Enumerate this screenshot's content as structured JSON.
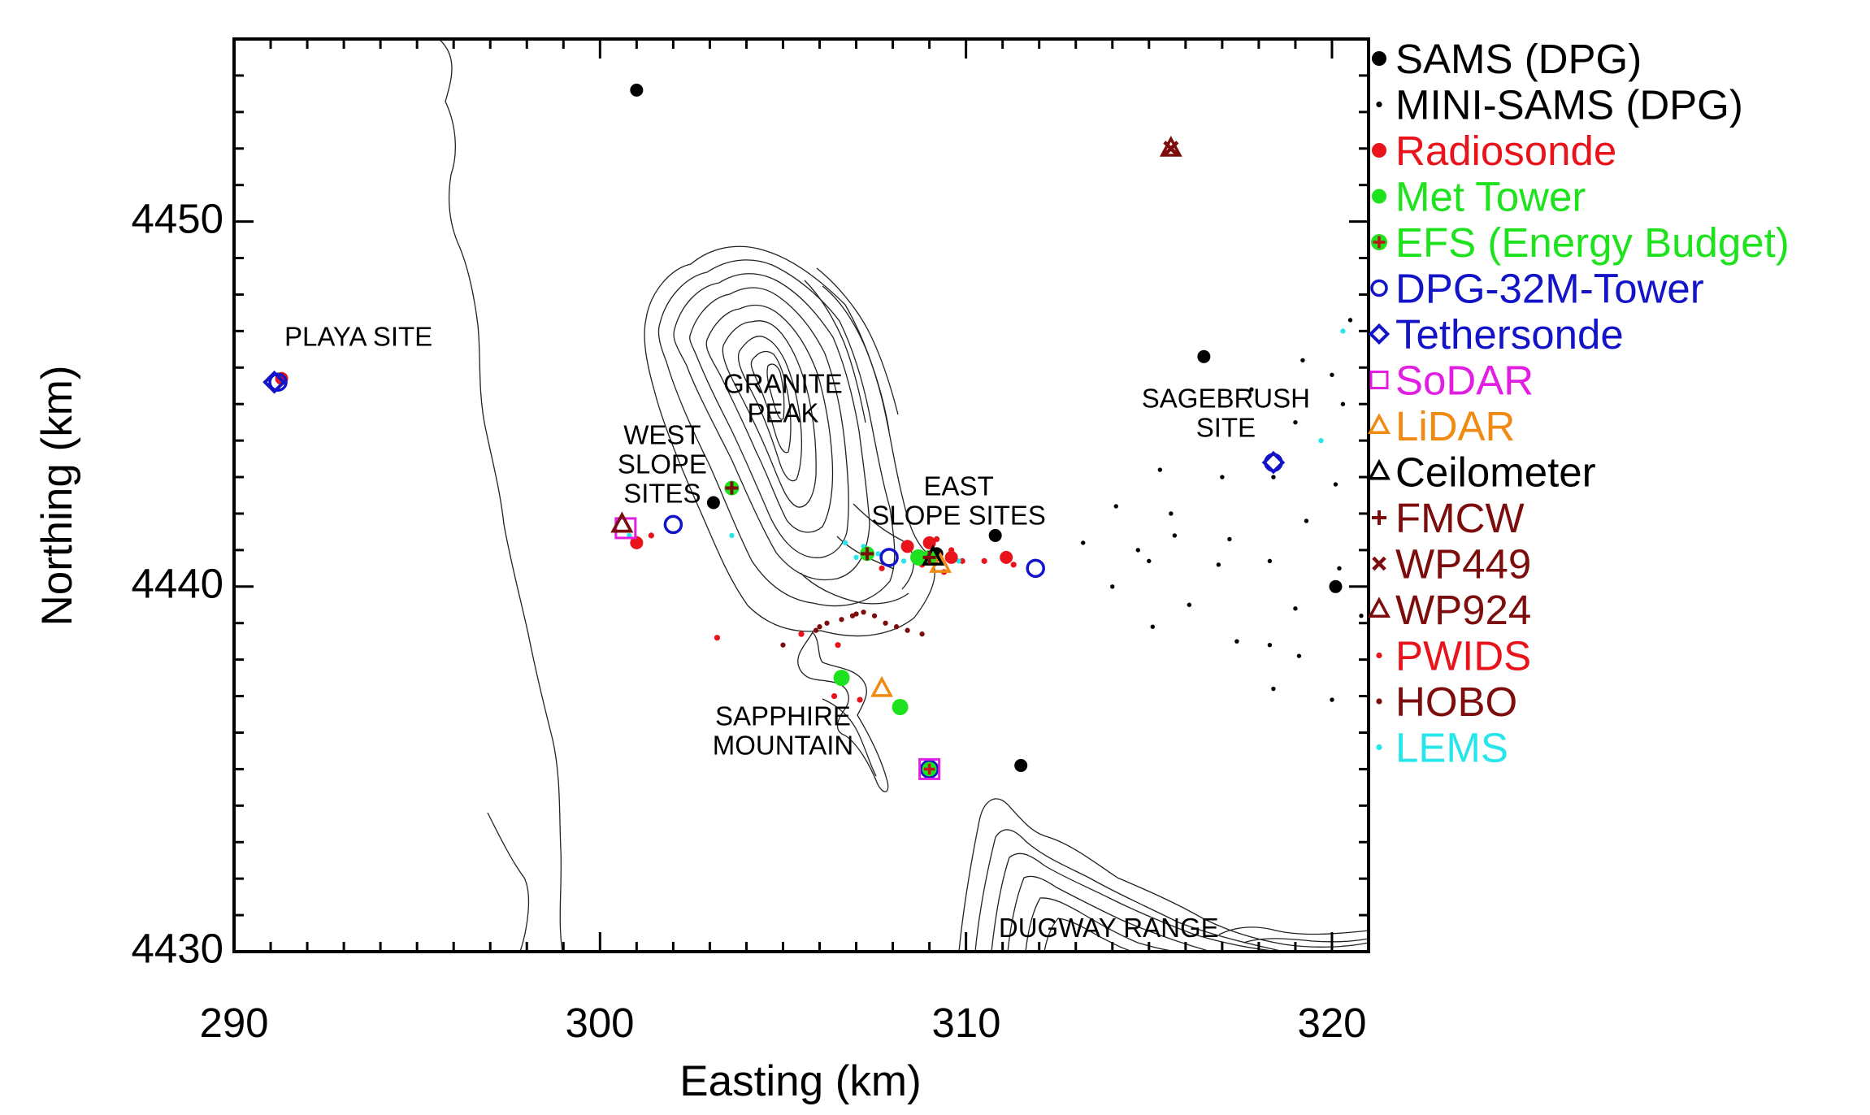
{
  "axes": {
    "x_label": "Easting (km)",
    "y_label": "Northing (km)",
    "x_range": [
      290,
      321
    ],
    "y_range": [
      4430,
      4455
    ],
    "x_ticks": [
      "290",
      "300",
      "310",
      "320"
    ],
    "y_ticks": [
      "4430",
      "4440",
      "4450"
    ]
  },
  "site_labels": [
    {
      "lines": [
        "PLAYA SITE"
      ],
      "x": 293.4,
      "y": 4446.6
    },
    {
      "lines": [
        "GRANITE",
        "PEAK"
      ],
      "x": 305.0,
      "y": 4445.3
    },
    {
      "lines": [
        "WEST",
        "SLOPE",
        "SITES"
      ],
      "x": 301.7,
      "y": 4443.9
    },
    {
      "lines": [
        "EAST",
        "SLOPE SITES"
      ],
      "x": 309.8,
      "y": 4442.5
    },
    {
      "lines": [
        "SAGEBRUSH",
        "SITE"
      ],
      "x": 317.1,
      "y": 4444.9
    },
    {
      "lines": [
        "SAPPHIRE",
        "MOUNTAIN"
      ],
      "x": 305.0,
      "y": 4436.2
    },
    {
      "lines": [
        "DUGWAY RANGE"
      ],
      "x": 313.9,
      "y": 4430.4
    }
  ],
  "legend": [
    {
      "label": "SAMS (DPG)",
      "color": "#000000",
      "symbol": "filled-circle"
    },
    {
      "label": "MINI-SAMS (DPG)",
      "color": "#000000",
      "symbol": "small-dot"
    },
    {
      "label": "Radiosonde",
      "color": "#e8131b",
      "symbol": "filled-circle"
    },
    {
      "label": "Met Tower",
      "color": "#1ee21e",
      "symbol": "filled-circle"
    },
    {
      "label": "EFS (Energy Budget)",
      "color": "#1ee21e",
      "symbol": "green-circle-red-plus"
    },
    {
      "label": "DPG-32M-Tower",
      "color": "#1313c8",
      "symbol": "open-circle"
    },
    {
      "label": "Tethersonde",
      "color": "#1313c8",
      "symbol": "open-diamond"
    },
    {
      "label": "SoDAR",
      "color": "#e21ee2",
      "symbol": "open-square"
    },
    {
      "label": "LiDAR",
      "color": "#f08a13",
      "symbol": "open-triangle"
    },
    {
      "label": "Ceilometer",
      "color": "#000000",
      "symbol": "open-triangle"
    },
    {
      "label": "FMCW",
      "color": "#7d0d0d",
      "symbol": "plus"
    },
    {
      "label": "WP449",
      "color": "#7d0d0d",
      "symbol": "cross"
    },
    {
      "label": "WP924",
      "color": "#7d0d0d",
      "symbol": "open-triangle"
    },
    {
      "label": "PWIDS",
      "color": "#e8131b",
      "symbol": "small-dot"
    },
    {
      "label": "HOBO",
      "color": "#7d0d0d",
      "symbol": "small-dot"
    },
    {
      "label": "LEMS",
      "color": "#27e6ea",
      "symbol": "small-dot"
    }
  ],
  "stations": {
    "sams": [
      [
        301.0,
        4453.6
      ],
      [
        303.1,
        4442.3
      ],
      [
        310.8,
        4441.4
      ],
      [
        316.5,
        4446.3
      ],
      [
        320.1,
        4440.0
      ],
      [
        311.5,
        4435.1
      ],
      [
        309.2,
        4440.9
      ]
    ],
    "mini_sams": [
      [
        313.2,
        4441.2
      ],
      [
        314.1,
        4442.2
      ],
      [
        314.7,
        4441.0
      ],
      [
        315.3,
        4443.2
      ],
      [
        315.6,
        4442.0
      ],
      [
        315.0,
        4440.7
      ],
      [
        315.7,
        4441.4
      ],
      [
        316.1,
        4439.5
      ],
      [
        314.0,
        4440.0
      ],
      [
        315.1,
        4438.9
      ],
      [
        316.9,
        4440.6
      ],
      [
        317.2,
        4441.3
      ],
      [
        317.0,
        4443.0
      ],
      [
        317.8,
        4445.4
      ],
      [
        318.4,
        4443.0
      ],
      [
        319.0,
        4444.5
      ],
      [
        319.2,
        4446.2
      ],
      [
        320.0,
        4445.8
      ],
      [
        320.3,
        4445.0
      ],
      [
        320.1,
        4442.8
      ],
      [
        319.3,
        4441.8
      ],
      [
        318.3,
        4440.7
      ],
      [
        319.0,
        4439.4
      ],
      [
        318.3,
        4438.4
      ],
      [
        317.4,
        4438.5
      ],
      [
        318.4,
        4437.2
      ],
      [
        319.1,
        4438.1
      ],
      [
        320.0,
        4436.9
      ],
      [
        320.8,
        4439.2
      ],
      [
        320.2,
        4440.5
      ],
      [
        320.5,
        4447.3
      ]
    ],
    "radiosonde": [
      [
        291.3,
        4445.7
      ],
      [
        301.0,
        4441.2
      ],
      [
        308.4,
        4441.1
      ],
      [
        309.0,
        4441.2
      ],
      [
        309.6,
        4440.8
      ],
      [
        311.1,
        4440.8
      ]
    ],
    "met_tower": [
      [
        306.6,
        4437.5
      ],
      [
        308.2,
        4436.7
      ],
      [
        308.7,
        4440.8
      ]
    ],
    "efs": [
      [
        303.6,
        4442.7
      ],
      [
        307.3,
        4440.9
      ],
      [
        309.0,
        4440.8
      ],
      [
        309.0,
        4435.0
      ]
    ],
    "dpg_tower": [
      [
        302.0,
        4441.7
      ],
      [
        307.9,
        4440.8
      ],
      [
        311.9,
        4440.5
      ],
      [
        309.0,
        4435.0
      ],
      [
        291.2,
        4445.6
      ],
      [
        318.4,
        4443.4
      ]
    ],
    "tethersonde": [
      [
        291.1,
        4445.6
      ],
      [
        318.4,
        4443.4
      ]
    ],
    "sodar": [
      [
        300.7,
        4441.6
      ],
      [
        309.0,
        4435.0
      ]
    ],
    "lidar": [
      [
        309.3,
        4440.6
      ],
      [
        307.7,
        4437.2
      ]
    ],
    "ceilometer": [
      [
        300.6,
        4441.7
      ],
      [
        309.1,
        4440.8
      ]
    ],
    "fmcw": [
      [
        303.6,
        4442.7
      ],
      [
        307.3,
        4440.9
      ],
      [
        309.0,
        4440.8
      ]
    ],
    "wp449": [
      [
        315.6,
        4452.0
      ]
    ],
    "wp924": [
      [
        315.6,
        4452.0
      ],
      [
        300.6,
        4441.7
      ]
    ],
    "pwids": [
      [
        301.4,
        4441.4
      ],
      [
        303.2,
        4438.6
      ],
      [
        305.5,
        4438.7
      ],
      [
        306.5,
        4438.4
      ],
      [
        307.7,
        4440.5
      ],
      [
        308.4,
        4441.2
      ],
      [
        308.8,
        4440.6
      ],
      [
        309.2,
        4441.3
      ],
      [
        309.9,
        4440.7
      ],
      [
        310.5,
        4440.7
      ],
      [
        311.3,
        4440.6
      ],
      [
        307.1,
        4436.9
      ],
      [
        306.4,
        4437.0
      ],
      [
        309.4,
        4440.4
      ],
      [
        309.6,
        4441.0
      ]
    ],
    "hobo": [
      [
        305.0,
        4438.4
      ],
      [
        305.9,
        4438.8
      ],
      [
        306.2,
        4439.0
      ],
      [
        306.6,
        4439.1
      ],
      [
        306.9,
        4439.2
      ],
      [
        307.2,
        4439.3
      ],
      [
        307.5,
        4439.2
      ],
      [
        307.8,
        4439.0
      ],
      [
        308.1,
        4438.9
      ],
      [
        308.4,
        4438.8
      ],
      [
        308.8,
        4438.7
      ],
      [
        306.0,
        4438.9
      ],
      [
        307.0,
        4439.25
      ]
    ],
    "lems": [
      [
        300.8,
        4441.4
      ],
      [
        303.6,
        4441.4
      ],
      [
        306.7,
        4441.2
      ],
      [
        307.0,
        4440.8
      ],
      [
        307.2,
        4441.1
      ],
      [
        307.6,
        4440.9
      ],
      [
        308.3,
        4440.7
      ],
      [
        308.6,
        4440.7
      ],
      [
        309.8,
        4440.7
      ],
      [
        319.7,
        4444.0
      ],
      [
        320.3,
        4447.0
      ]
    ]
  }
}
